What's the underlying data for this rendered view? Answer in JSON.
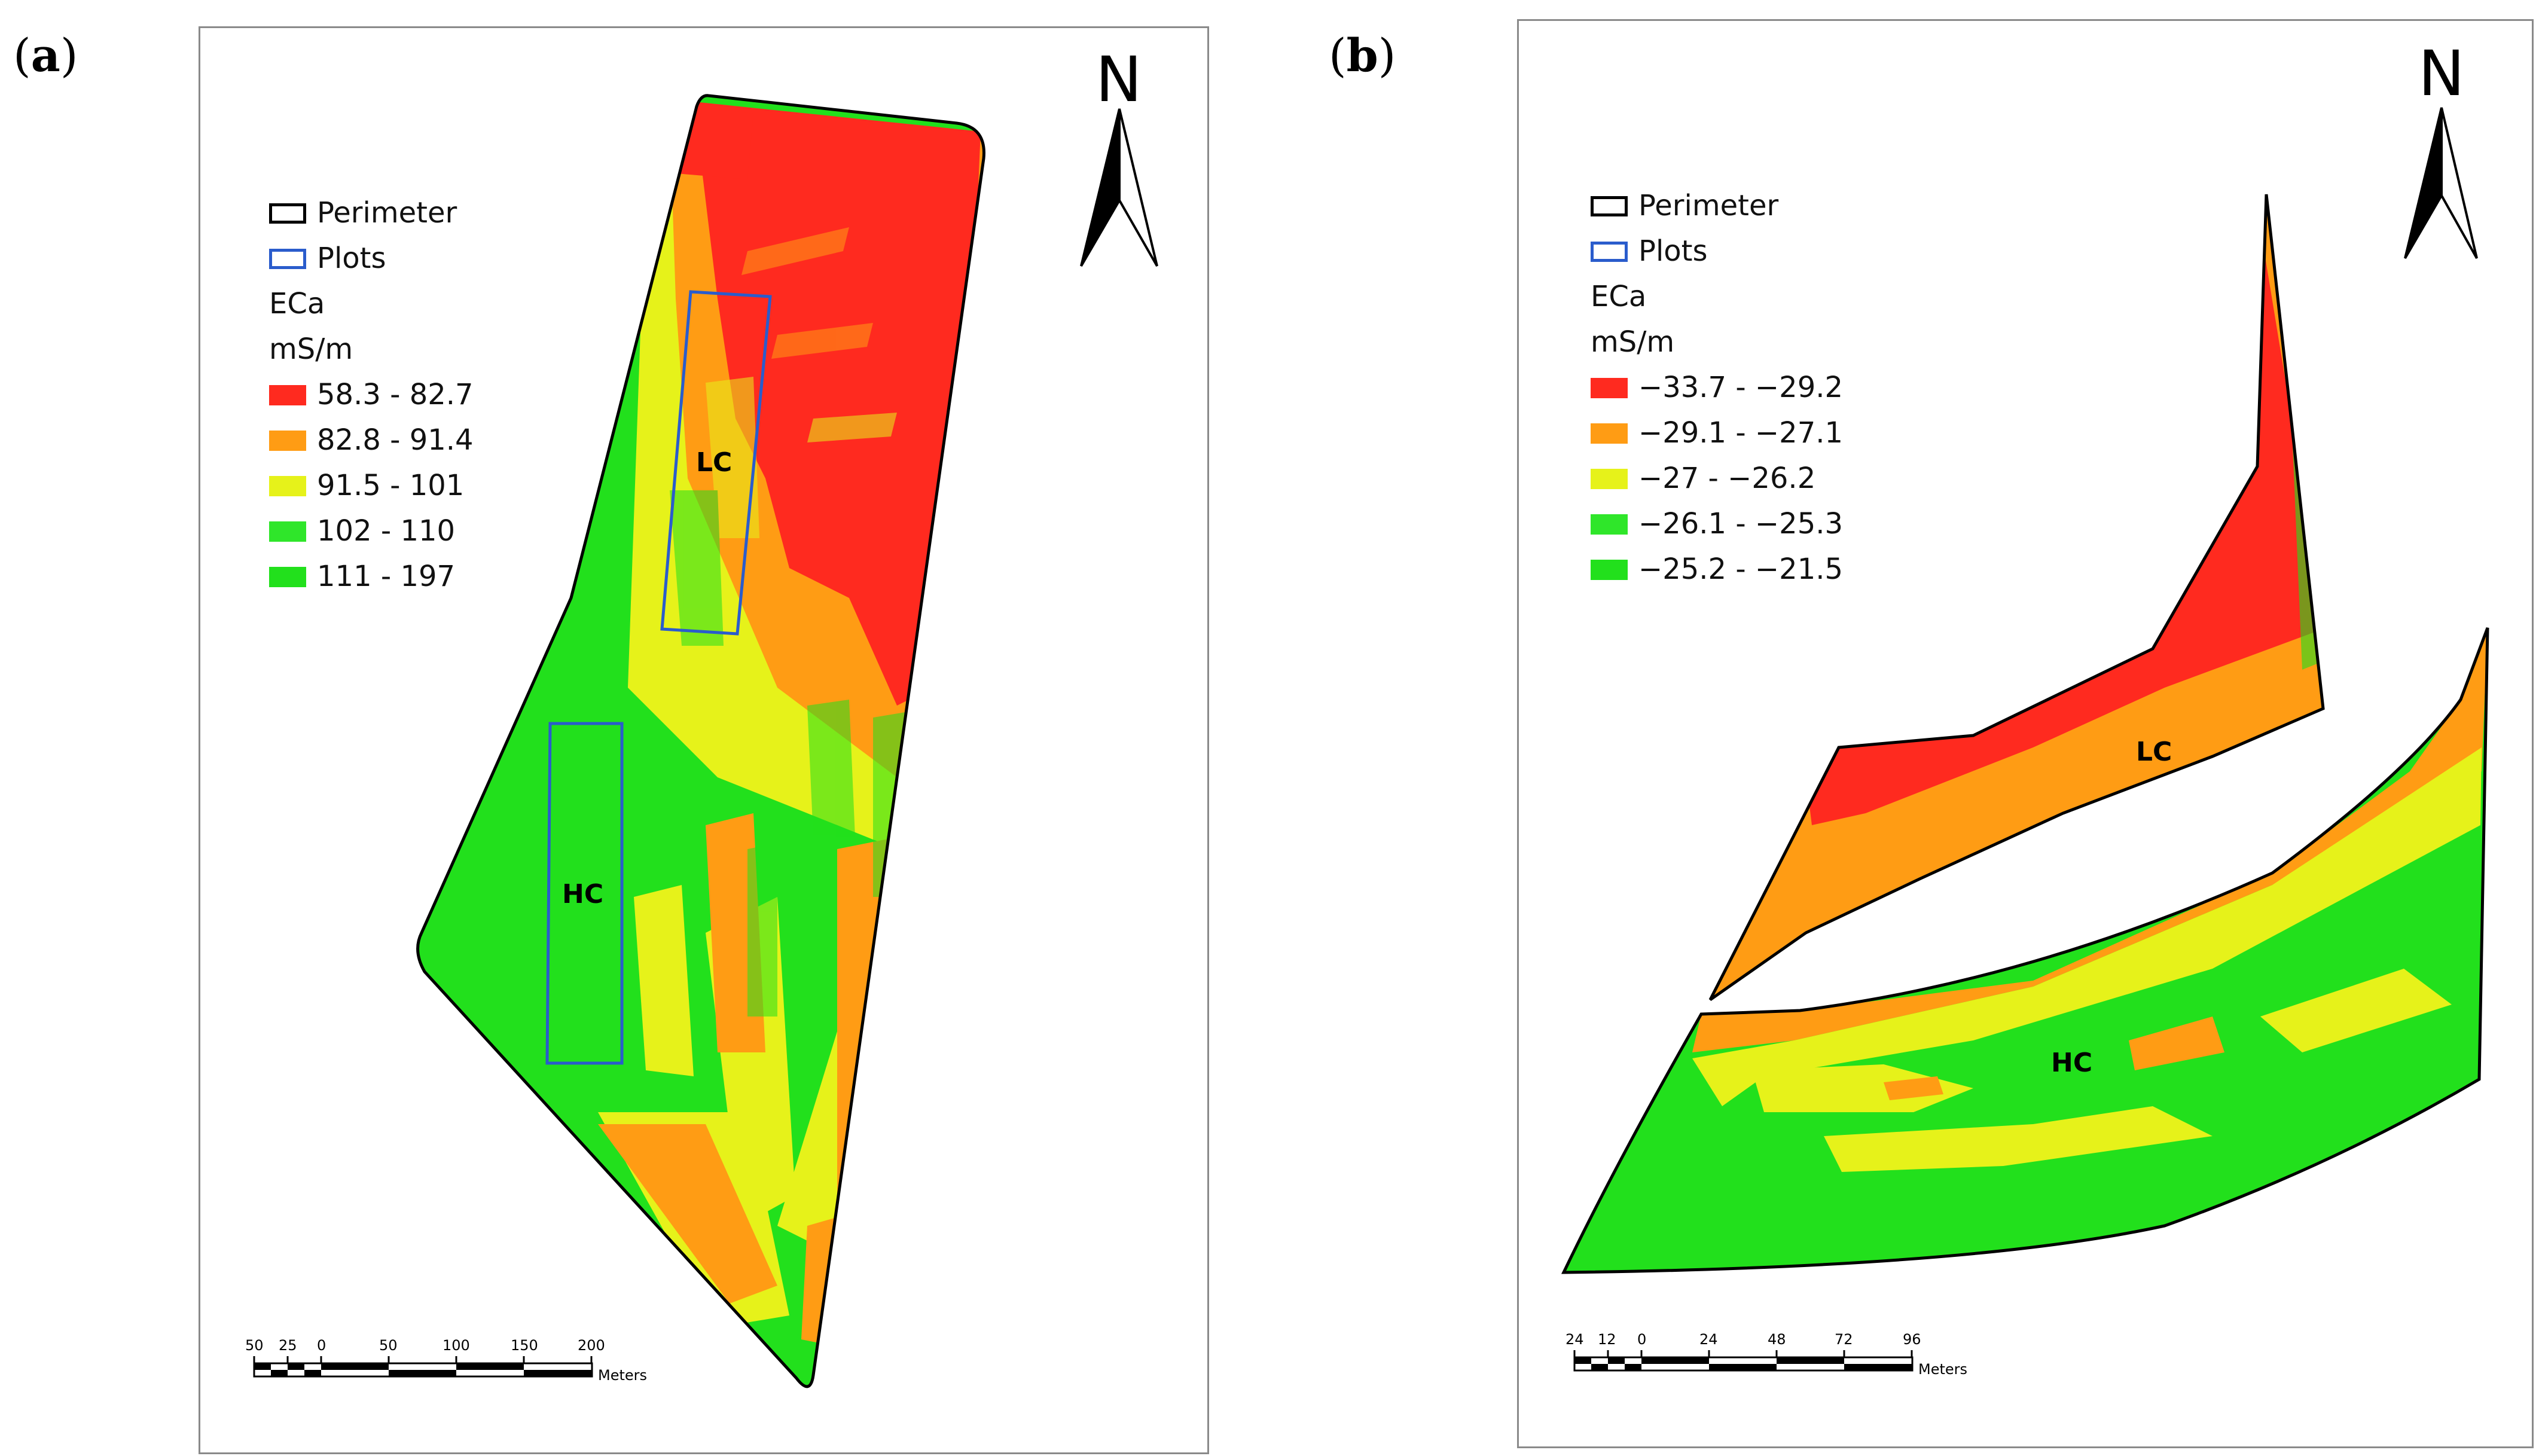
{
  "panels": [
    {
      "id": "a",
      "label_open": "(",
      "label_letter": "a",
      "label_close": ")",
      "north": "N",
      "legend": {
        "perimeter_label": "Perimeter",
        "plots_label": "Plots",
        "title": "ECa",
        "units": "mS/m",
        "classes": [
          {
            "label": "58.3 - 82.7",
            "color": "#ff2a1f"
          },
          {
            "label": "82.8 - 91.4",
            "color": "#ff9c14"
          },
          {
            "label": "91.5 - 101",
            "color": "#e6f21a"
          },
          {
            "label": "102 - 110",
            "color": "#2fe62a"
          },
          {
            "label": "111 - 197",
            "color": "#22e01c"
          }
        ]
      },
      "zones": {
        "low": "LC",
        "high": "HC"
      },
      "scale": {
        "ticks": [
          "50",
          "25",
          "0",
          "50",
          "100",
          "150",
          "200"
        ],
        "unit": "Meters"
      }
    },
    {
      "id": "b",
      "label_open": "(",
      "label_letter": "b",
      "label_close": ")",
      "north": "N",
      "legend": {
        "perimeter_label": "Perimeter",
        "plots_label": "Plots",
        "title": "ECa",
        "units": "mS/m",
        "classes": [
          {
            "label": "−33.7 - −29.2",
            "color": "#ff2a1f"
          },
          {
            "label": "−29.1 - −27.1",
            "color": "#ff9c14"
          },
          {
            "label": "−27 - −26.2",
            "color": "#e6f21a"
          },
          {
            "label": "−26.1 - −25.3",
            "color": "#2fe62a"
          },
          {
            "label": "−25.2 - −21.5",
            "color": "#22e01c"
          }
        ]
      },
      "zones": {
        "low": "LC",
        "high": "HC"
      },
      "scale": {
        "ticks": [
          "24",
          "12",
          "0",
          "24",
          "48",
          "72",
          "96"
        ],
        "unit": "Meters"
      }
    }
  ],
  "colors": {
    "red": "#ff2a1f",
    "orange": "#ff9c14",
    "yellow": "#e6f21a",
    "green": "#22e01c",
    "plot_outline": "#2a5ccc"
  }
}
